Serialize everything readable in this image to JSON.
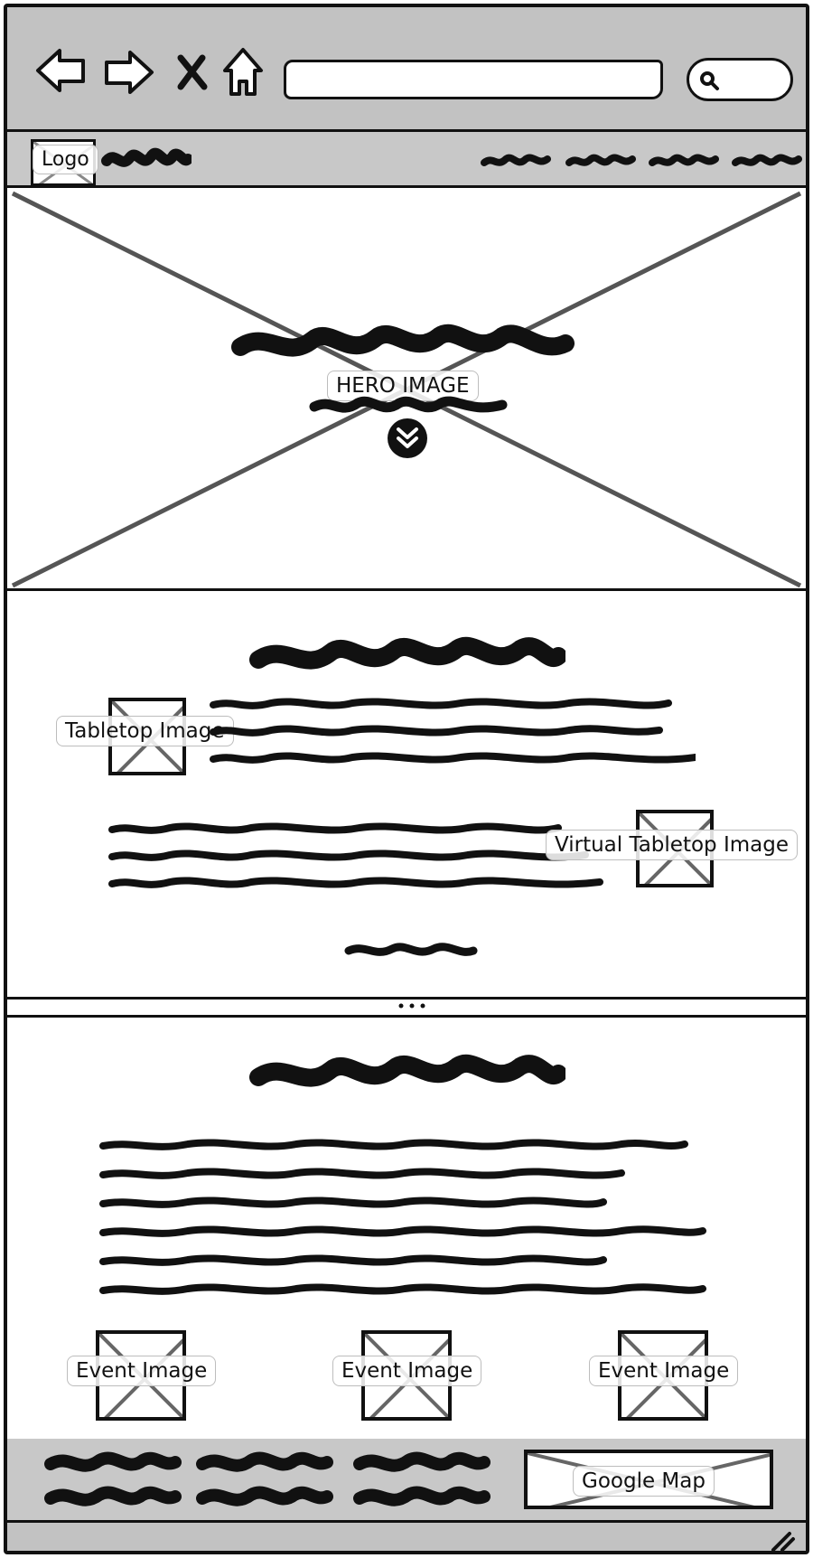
{
  "labels": {
    "logo": "Logo",
    "hero_image": "HERO IMAGE",
    "tabletop_image": "Tabletop Image",
    "virtual_tabletop_image": "Virtual Tabletop Image",
    "event_image": "Event Image",
    "google_map": "Google Map"
  },
  "icons": {
    "back": "back-arrow-icon",
    "forward": "forward-arrow-icon",
    "stop": "close-icon",
    "home": "home-icon",
    "search": "search-icon",
    "scroll_down": "double-chevron-down-icon",
    "resize": "resize-grip-icon"
  },
  "colors": {
    "chrome": "#c2c2c2",
    "nav": "#c8c8c8",
    "ink": "#111111",
    "placeholder_x": "#555555"
  }
}
